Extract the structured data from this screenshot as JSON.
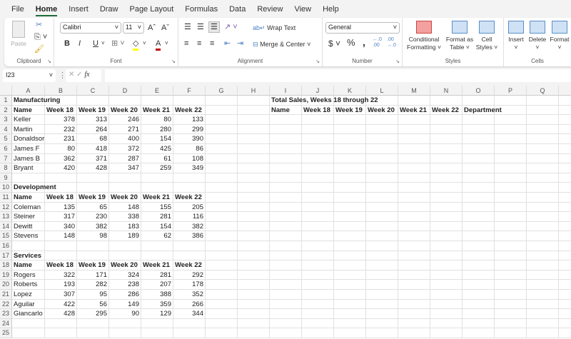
{
  "menu": [
    "File",
    "Home",
    "Insert",
    "Draw",
    "Page Layout",
    "Formulas",
    "Data",
    "Review",
    "View",
    "Help"
  ],
  "active_tab": "Home",
  "ribbon": {
    "clipboard": {
      "label": "Clipboard",
      "paste": "Paste"
    },
    "font": {
      "label": "Font",
      "name": "Calibri",
      "size": "11",
      "bold": "B",
      "italic": "I",
      "underline": "U",
      "grow": "Aˆ",
      "shrink": "Aˇ",
      "font_color": "#c00000",
      "fill_color": "#ffff00"
    },
    "alignment": {
      "label": "Alignment",
      "wrap": "Wrap Text",
      "merge": "Merge & Center"
    },
    "number": {
      "label": "Number",
      "format": "General",
      "currency": "$",
      "percent": "%",
      "comma": ",",
      "inc": "←.0 .00",
      "dec": ".00 →.0"
    },
    "styles": {
      "label": "Styles",
      "conditional": [
        "Conditional",
        "Formatting ˅"
      ],
      "table": [
        "Format as",
        "Table ˅"
      ],
      "cell": [
        "Cell",
        "Styles ˅"
      ]
    },
    "cells": {
      "label": "Cells",
      "insert": "Insert",
      "delete": "Delete",
      "format": "Format"
    }
  },
  "formula_bar": {
    "name_box": "I23",
    "fx": "fx",
    "value": ""
  },
  "columns": [
    "A",
    "B",
    "C",
    "D",
    "E",
    "F",
    "G",
    "H",
    "I",
    "J",
    "K",
    "L",
    "M",
    "N",
    "O",
    "P",
    "Q",
    "R"
  ],
  "row_count": 25,
  "cells": {
    "A1": "Manufacturing",
    "A2": "Name",
    "B2": "Week 18",
    "C2": "Week 19",
    "D2": "Week 20",
    "E2": "Week 21",
    "F2": "Week 22",
    "A3": "Keller",
    "B3": 378,
    "C3": 313,
    "D3": 246,
    "E3": 80,
    "F3": 133,
    "A4": "Martin",
    "B4": 232,
    "C4": 264,
    "D4": 271,
    "E4": 280,
    "F4": 299,
    "A5": "Donaldsor",
    "B5": 231,
    "C5": 68,
    "D5": 400,
    "E5": 154,
    "F5": 390,
    "A6": "James F",
    "B6": 80,
    "C6": 418,
    "D6": 372,
    "E6": 425,
    "F6": 86,
    "A7": "James B",
    "B7": 362,
    "C7": 371,
    "D7": 287,
    "E7": 61,
    "F7": 108,
    "A8": "Bryant",
    "B8": 420,
    "C8": 428,
    "D8": 347,
    "E8": 259,
    "F8": 349,
    "A10": "Development",
    "A11": "Name",
    "B11": "Week 18",
    "C11": "Week 19",
    "D11": "Week 20",
    "E11": "Week 21",
    "F11": "Week 22",
    "A12": "Coleman",
    "B12": 135,
    "C12": 65,
    "D12": 148,
    "E12": 155,
    "F12": 205,
    "A13": "Steiner",
    "B13": 317,
    "C13": 230,
    "D13": 338,
    "E13": 281,
    "F13": 116,
    "A14": "Dewitt",
    "B14": 340,
    "C14": 382,
    "D14": 183,
    "E14": 154,
    "F14": 382,
    "A15": "Stevens",
    "B15": 148,
    "C15": 98,
    "D15": 189,
    "E15": 62,
    "F15": 386,
    "A17": "Services",
    "A18": "Name",
    "B18": "Week 18",
    "C18": "Week 19",
    "D18": "Week 20",
    "E18": "Week 21",
    "F18": "Week 22",
    "A19": "Rogers",
    "B19": 322,
    "C19": 171,
    "D19": 324,
    "E19": 281,
    "F19": 292,
    "A20": "Roberts",
    "B20": 193,
    "C20": 282,
    "D20": 238,
    "E20": 207,
    "F20": 178,
    "A21": "Lopez",
    "B21": 307,
    "C21": 95,
    "D21": 286,
    "E21": 388,
    "F21": 352,
    "A22": "Aguilar",
    "B22": 422,
    "C22": 56,
    "D22": 149,
    "E22": 359,
    "F22": 266,
    "A23": "Giancarlo",
    "B23": 428,
    "C23": 295,
    "D23": 90,
    "E23": 129,
    "F23": 344,
    "I1": "Total Sales, Weeks 18 through 22",
    "I2": "Name",
    "J2": "Week 18",
    "K2": "Week 19",
    "L2": "Week 20",
    "M2": "Week 21",
    "N2": "Week 22",
    "O2": "Department"
  },
  "bold_rows": [
    1,
    2,
    10,
    11,
    17,
    18
  ]
}
